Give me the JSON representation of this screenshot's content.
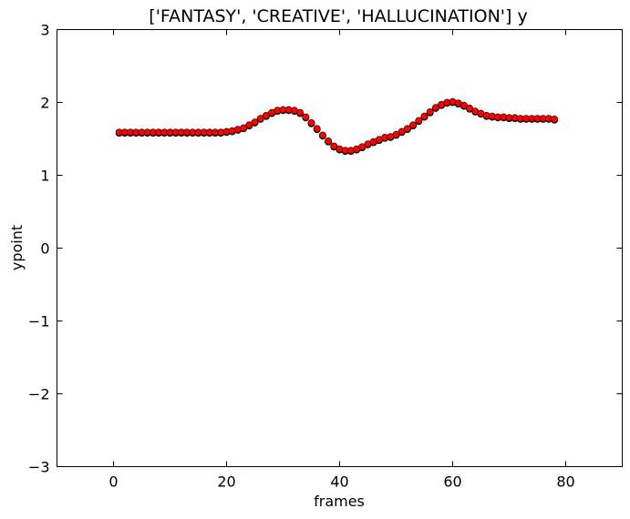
{
  "chart_data": {
    "type": "scatter",
    "title": "['FANTASY', 'CREATIVE', 'HALLUCINATION'] y",
    "xlabel": "frames",
    "ylabel": "ypoint",
    "xlim": [
      -10,
      90
    ],
    "ylim": [
      -3,
      3
    ],
    "xticks": [
      0,
      20,
      40,
      60,
      80
    ],
    "yticks": [
      -3,
      -2,
      -1,
      0,
      1,
      2,
      3
    ],
    "xtick_labels": [
      "0",
      "20",
      "40",
      "60",
      "80"
    ],
    "ytick_labels": [
      "−3",
      "−2",
      "−1",
      "0",
      "1",
      "2",
      "3"
    ],
    "grid": false,
    "series": [
      {
        "color": "#0000ff",
        "x": [
          1,
          2,
          3,
          4,
          5,
          6,
          7,
          8,
          9,
          10,
          11,
          12,
          13,
          14,
          15,
          16,
          17,
          18,
          19,
          20,
          21,
          22,
          23,
          24,
          25,
          26,
          27,
          28,
          29,
          30,
          31,
          32,
          33,
          34,
          35,
          36,
          37,
          38,
          39,
          40,
          41,
          42,
          43,
          44,
          45,
          46,
          47,
          48,
          49,
          50,
          51,
          52,
          53,
          54,
          55,
          56,
          57,
          58,
          59,
          60,
          61,
          62,
          63,
          64,
          65,
          66,
          67,
          68,
          69,
          70,
          71,
          72,
          73,
          74,
          75,
          76,
          77,
          78
        ],
        "y": [
          1.58,
          1.58,
          1.58,
          1.58,
          1.58,
          1.58,
          1.58,
          1.58,
          1.58,
          1.58,
          1.58,
          1.58,
          1.58,
          1.58,
          1.58,
          1.58,
          1.58,
          1.58,
          1.58,
          1.59,
          1.6,
          1.62,
          1.64,
          1.68,
          1.72,
          1.77,
          1.81,
          1.85,
          1.88,
          1.89,
          1.89,
          1.88,
          1.85,
          1.79,
          1.71,
          1.63,
          1.54,
          1.46,
          1.39,
          1.35,
          1.33,
          1.33,
          1.35,
          1.38,
          1.42,
          1.45,
          1.48,
          1.51,
          1.52,
          1.55,
          1.59,
          1.63,
          1.68,
          1.74,
          1.8,
          1.86,
          1.92,
          1.96,
          1.99,
          2.0,
          1.98,
          1.95,
          1.91,
          1.87,
          1.84,
          1.81,
          1.8,
          1.79,
          1.79,
          1.78,
          1.78,
          1.77,
          1.77,
          1.77,
          1.77,
          1.77,
          1.77,
          1.76
        ]
      },
      {
        "color": "#008000",
        "x": [
          1,
          2,
          3,
          4,
          5,
          6,
          7,
          8,
          9,
          10,
          11,
          12,
          13,
          14,
          15,
          16,
          17,
          18,
          19,
          20,
          21,
          22,
          23,
          24,
          25,
          26,
          27,
          28,
          29,
          30,
          31,
          32,
          33,
          34,
          35,
          36,
          37,
          38,
          39,
          40,
          41,
          42,
          43,
          44,
          45,
          46,
          47,
          48,
          49,
          50,
          51,
          52,
          53,
          54,
          55,
          56,
          57,
          58,
          59,
          60,
          61,
          62,
          63,
          64,
          65,
          66,
          67,
          68,
          69,
          70,
          71,
          72,
          73,
          74,
          75,
          76,
          77,
          78
        ],
        "y": [
          1.58,
          1.58,
          1.58,
          1.58,
          1.58,
          1.58,
          1.58,
          1.58,
          1.58,
          1.58,
          1.58,
          1.58,
          1.58,
          1.58,
          1.58,
          1.58,
          1.58,
          1.58,
          1.58,
          1.59,
          1.6,
          1.62,
          1.64,
          1.68,
          1.72,
          1.77,
          1.81,
          1.85,
          1.88,
          1.89,
          1.89,
          1.88,
          1.85,
          1.79,
          1.71,
          1.63,
          1.54,
          1.46,
          1.39,
          1.35,
          1.33,
          1.33,
          1.35,
          1.38,
          1.42,
          1.45,
          1.48,
          1.51,
          1.52,
          1.55,
          1.59,
          1.63,
          1.68,
          1.74,
          1.8,
          1.86,
          1.92,
          1.96,
          1.99,
          2.0,
          1.98,
          1.95,
          1.91,
          1.87,
          1.84,
          1.81,
          1.8,
          1.79,
          1.79,
          1.78,
          1.78,
          1.77,
          1.77,
          1.77,
          1.77,
          1.77,
          1.77,
          1.76
        ]
      },
      {
        "color": "#ff0000",
        "x": [
          1,
          2,
          3,
          4,
          5,
          6,
          7,
          8,
          9,
          10,
          11,
          12,
          13,
          14,
          15,
          16,
          17,
          18,
          19,
          20,
          21,
          22,
          23,
          24,
          25,
          26,
          27,
          28,
          29,
          30,
          31,
          32,
          33,
          34,
          35,
          36,
          37,
          38,
          39,
          40,
          41,
          42,
          43,
          44,
          45,
          46,
          47,
          48,
          49,
          50,
          51,
          52,
          53,
          54,
          55,
          56,
          57,
          58,
          59,
          60,
          61,
          62,
          63,
          64,
          65,
          66,
          67,
          68,
          69,
          70,
          71,
          72,
          73,
          74,
          75,
          76,
          77,
          78
        ],
        "y": [
          1.59,
          1.59,
          1.59,
          1.59,
          1.59,
          1.59,
          1.59,
          1.59,
          1.59,
          1.59,
          1.59,
          1.59,
          1.59,
          1.59,
          1.59,
          1.59,
          1.59,
          1.59,
          1.59,
          1.6,
          1.61,
          1.63,
          1.65,
          1.69,
          1.73,
          1.78,
          1.82,
          1.86,
          1.89,
          1.9,
          1.9,
          1.89,
          1.86,
          1.8,
          1.72,
          1.64,
          1.55,
          1.47,
          1.4,
          1.36,
          1.34,
          1.34,
          1.36,
          1.39,
          1.43,
          1.46,
          1.49,
          1.52,
          1.53,
          1.56,
          1.6,
          1.64,
          1.69,
          1.75,
          1.81,
          1.87,
          1.93,
          1.97,
          2.0,
          2.01,
          1.99,
          1.96,
          1.92,
          1.88,
          1.85,
          1.82,
          1.81,
          1.8,
          1.8,
          1.79,
          1.79,
          1.78,
          1.78,
          1.78,
          1.78,
          1.78,
          1.78,
          1.77
        ]
      }
    ]
  }
}
